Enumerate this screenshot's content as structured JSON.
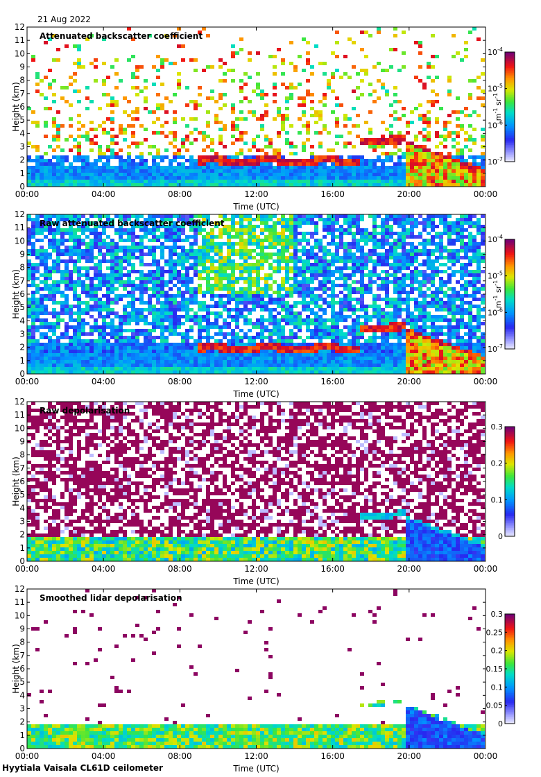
{
  "date": "21 Aug 2022",
  "footer": "Hyytiala Vaisala CL61D ceilometer",
  "chart_data": [
    {
      "type": "heatmap",
      "title": "Attenuated backscatter coefficient",
      "xlabel": "Time (UTC)",
      "ylabel": "Height (km)",
      "xticks": [
        "00:00",
        "04:00",
        "08:00",
        "12:00",
        "16:00",
        "20:00",
        "00:00"
      ],
      "yticks": [
        "0",
        "1",
        "2",
        "3",
        "4",
        "5",
        "6",
        "7",
        "8",
        "9",
        "10",
        "11",
        "12"
      ],
      "xlim": [
        0,
        24
      ],
      "ylim": [
        0,
        12
      ],
      "colorbar": {
        "scale": "log",
        "ticks": [
          {
            "value": 1e-07,
            "base": "10",
            "exp": "-7"
          },
          {
            "value": 1e-06,
            "base": "10",
            "exp": "-6"
          },
          {
            "value": 1e-05,
            "base": "10",
            "exp": "-5"
          },
          {
            "value": 0.0001,
            "base": "10",
            "exp": "-4"
          }
        ],
        "label": {
          "m": "m",
          "m_exp": "-1",
          "sr": " sr",
          "sr_exp": "-1"
        },
        "range": [
          1e-07,
          0.0001
        ]
      },
      "style": "clean"
    },
    {
      "type": "heatmap",
      "title": "Raw attenuated backscatter coefficient",
      "xlabel": "Time (UTC)",
      "ylabel": "Height (km)",
      "xticks": [
        "00:00",
        "04:00",
        "08:00",
        "12:00",
        "16:00",
        "20:00",
        "00:00"
      ],
      "yticks": [
        "0",
        "1",
        "2",
        "3",
        "4",
        "5",
        "6",
        "7",
        "8",
        "9",
        "10",
        "11",
        "12"
      ],
      "xlim": [
        0,
        24
      ],
      "ylim": [
        0,
        12
      ],
      "colorbar": {
        "scale": "log",
        "ticks": [
          {
            "value": 1e-07,
            "base": "10",
            "exp": "-7"
          },
          {
            "value": 1e-06,
            "base": "10",
            "exp": "-6"
          },
          {
            "value": 1e-05,
            "base": "10",
            "exp": "-5"
          },
          {
            "value": 0.0001,
            "base": "10",
            "exp": "-4"
          }
        ],
        "label": {
          "m": "m",
          "m_exp": "-1",
          "sr": " sr",
          "sr_exp": "-1"
        },
        "range": [
          1e-07,
          0.0001
        ]
      },
      "style": "raw"
    },
    {
      "type": "heatmap",
      "title": "Raw depolarisation",
      "xlabel": "Time (UTC)",
      "ylabel": "Height (km)",
      "xticks": [
        "00:00",
        "04:00",
        "08:00",
        "12:00",
        "16:00",
        "20:00",
        "00:00"
      ],
      "yticks": [
        "0",
        "1",
        "2",
        "3",
        "4",
        "5",
        "6",
        "7",
        "8",
        "9",
        "10",
        "11",
        "12"
      ],
      "xlim": [
        0,
        24
      ],
      "ylim": [
        0,
        12
      ],
      "colorbar": {
        "scale": "linear",
        "ticks": [
          {
            "value": 0,
            "text": "0"
          },
          {
            "value": 0.1,
            "text": "0.1"
          },
          {
            "value": 0.2,
            "text": "0.2"
          },
          {
            "value": 0.3,
            "text": "0.3"
          }
        ],
        "range": [
          0,
          0.3
        ]
      },
      "style": "rawdepol"
    },
    {
      "type": "heatmap",
      "title": "Smoothed lidar depolarisation",
      "xlabel": "Time (UTC)",
      "ylabel": "Height (km)",
      "xticks": [
        "00:00",
        "04:00",
        "08:00",
        "12:00",
        "16:00",
        "20:00",
        "00:00"
      ],
      "yticks": [
        "0",
        "1",
        "2",
        "3",
        "4",
        "5",
        "6",
        "7",
        "8",
        "9",
        "10",
        "11",
        "12"
      ],
      "xlim": [
        0,
        24
      ],
      "ylim": [
        0,
        12
      ],
      "colorbar": {
        "scale": "linear",
        "ticks": [
          {
            "value": 0,
            "text": "0"
          },
          {
            "value": 0.05,
            "text": "0.05"
          },
          {
            "value": 0.1,
            "text": "0.1"
          },
          {
            "value": 0.15,
            "text": "0.15"
          },
          {
            "value": 0.2,
            "text": "0.2"
          },
          {
            "value": 0.25,
            "text": "0.25"
          },
          {
            "value": 0.3,
            "text": "0.3"
          }
        ],
        "range": [
          0,
          0.3
        ]
      },
      "style": "smoothdepol"
    }
  ]
}
